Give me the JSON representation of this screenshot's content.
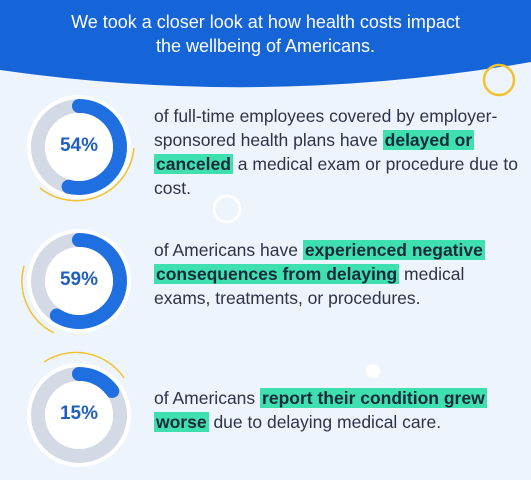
{
  "header": {
    "line1": "We took a closer look at how health costs impact",
    "line2": "the wellbeing of Americans."
  },
  "colors": {
    "header_blue": "#1565d8",
    "ring_blue": "#1f6fe0",
    "ring_track": "#d3dae6",
    "accent_yellow": "#f2c230",
    "highlight": "#3fe0b0"
  },
  "stats": [
    {
      "percent": "54%",
      "value": 0.54,
      "text_before": "of full-time employees covered by employer-sponsored health plans have ",
      "highlight": "delayed or canceled",
      "text_after": " a medical exam or procedure due to cost."
    },
    {
      "percent": "59%",
      "value": 0.59,
      "text_before": "of Americans have ",
      "highlight": "experienced negative consequences from delaying",
      "text_after": " medical exams, treatments, or procedures."
    },
    {
      "percent": "15%",
      "value": 0.15,
      "text_before": "of Americans ",
      "highlight": "report their condition grew worse",
      "text_after": " due to delaying medical care."
    }
  ]
}
